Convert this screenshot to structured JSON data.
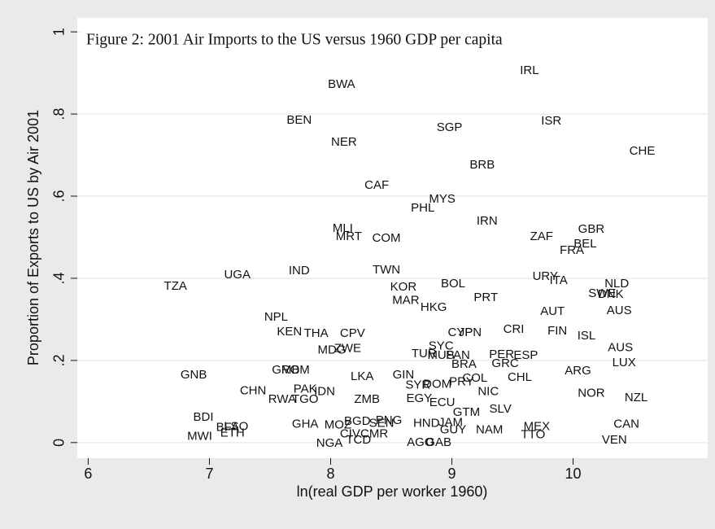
{
  "chart_data": {
    "type": "scatter",
    "title": "Figure 2: 2001 Air Imports to the US versus 1960 GDP per capita",
    "x_label": "ln(real GDP per worker 1960)",
    "y_label": "Proportion of Exports to US by Air 2001",
    "xlim": [
      5.91,
      11.11
    ],
    "ylim": [
      -0.038,
      1.034
    ],
    "xticks": [
      6,
      7,
      8,
      9,
      10
    ],
    "yticks": [
      0,
      {
        "value": 0.2,
        "label": ".2"
      },
      {
        "value": 0.4,
        "label": ".4"
      },
      {
        "value": 0.6,
        "label": ".6"
      },
      {
        "value": 0.8,
        "label": ".8"
      },
      1
    ],
    "grid": true,
    "labels": [
      "IRL",
      "BWA",
      "BEN",
      "ISR",
      "SGP",
      "CHE",
      "NER",
      "BRB",
      "CAF",
      "MYS",
      "PHL",
      "IRN",
      "GBR",
      "MLI",
      "MRT",
      "COM",
      "ZAF",
      "BEL",
      "FRA",
      "TWN",
      "UGA",
      "IND",
      "TZA",
      "URY",
      "ITA",
      "NLD",
      "BOL",
      "KOR",
      "SWE",
      "DNK",
      "PRT",
      "MAR",
      "HKG",
      "AUT",
      "AUS",
      "NPL",
      "KEN",
      "THA",
      "CPV",
      "CYP",
      "JPN",
      "CRI",
      "FIN",
      "ISL",
      "SYC",
      "MDG",
      "ZWE",
      "AUS",
      "TUR",
      "MUS",
      "PAN",
      "PER",
      "ESP",
      "LUX",
      "BRA",
      "GRC",
      "GNB",
      "GMB",
      "ROM",
      "ARG",
      "LKA",
      "GIN",
      "CHL",
      "COL",
      "PRY",
      "DOM",
      "SYR",
      "NIC",
      "CHN",
      "PAK",
      "RWA",
      "TGO",
      "IDN",
      "ZMB",
      "EGY",
      "ECU",
      "NZL",
      "NOR",
      "SLV",
      "GTM",
      "BDI",
      "PNG",
      "BGD",
      "SEN",
      "CAN",
      "MOZ",
      "GHA",
      "BFA",
      "LSO",
      "HND",
      "JAM",
      "GUY",
      "NAM",
      "MEX",
      "ETH",
      "MWI",
      "TTO",
      "CMR",
      "CIV",
      "TCD",
      "VEN",
      "NGA",
      "AGO",
      "GAB"
    ],
    "x": [
      9.64,
      8.09,
      7.74,
      9.82,
      8.98,
      10.57,
      8.11,
      9.25,
      8.38,
      8.92,
      8.76,
      9.29,
      10.15,
      8.1,
      8.15,
      8.46,
      9.74,
      10.1,
      9.99,
      8.46,
      7.23,
      7.74,
      6.72,
      9.77,
      9.88,
      10.36,
      9.01,
      8.6,
      10.24,
      10.31,
      9.28,
      8.62,
      8.85,
      9.83,
      10.38,
      7.55,
      7.66,
      7.88,
      8.18,
      9.07,
      9.15,
      9.51,
      9.87,
      10.11,
      8.91,
      8.01,
      8.14,
      10.39,
      8.77,
      8.91,
      9.05,
      9.41,
      9.61,
      10.42,
      9.1,
      9.44,
      6.87,
      7.63,
      7.71,
      10.04,
      8.26,
      8.6,
      9.56,
      9.19,
      9.08,
      8.88,
      8.72,
      9.3,
      7.36,
      7.79,
      7.6,
      7.79,
      7.95,
      8.3,
      8.73,
      8.92,
      10.52,
      10.15,
      9.4,
      9.12,
      6.95,
      8.48,
      8.22,
      8.42,
      10.44,
      8.06,
      7.79,
      7.15,
      7.22,
      8.79,
      8.99,
      9.01,
      9.31,
      9.7,
      7.19,
      6.92,
      9.67,
      8.36,
      8.16,
      8.23,
      10.34,
      7.99,
      8.74,
      8.89
    ],
    "values": [
      0.905,
      0.871,
      0.784,
      0.782,
      0.766,
      0.709,
      0.731,
      0.675,
      0.626,
      0.592,
      0.57,
      0.539,
      0.519,
      0.521,
      0.501,
      0.497,
      0.501,
      0.483,
      0.467,
      0.42,
      0.408,
      0.418,
      0.38,
      0.404,
      0.394,
      0.386,
      0.386,
      0.378,
      0.362,
      0.36,
      0.352,
      0.345,
      0.329,
      0.319,
      0.321,
      0.305,
      0.269,
      0.265,
      0.265,
      0.267,
      0.267,
      0.275,
      0.271,
      0.259,
      0.234,
      0.224,
      0.228,
      0.23,
      0.216,
      0.212,
      0.212,
      0.214,
      0.212,
      0.194,
      0.19,
      0.192,
      0.164,
      0.176,
      0.176,
      0.174,
      0.16,
      0.164,
      0.158,
      0.156,
      0.147,
      0.141,
      0.139,
      0.123,
      0.125,
      0.129,
      0.105,
      0.105,
      0.123,
      0.105,
      0.107,
      0.097,
      0.109,
      0.119,
      0.081,
      0.073,
      0.061,
      0.053,
      0.051,
      0.046,
      0.044,
      0.042,
      0.044,
      0.036,
      0.038,
      0.046,
      0.048,
      0.03,
      0.03,
      0.038,
      0.022,
      0.014,
      0.018,
      0.02,
      0.02,
      0.006,
      0.006,
      -0.002,
      0.0,
      0.0
    ]
  }
}
